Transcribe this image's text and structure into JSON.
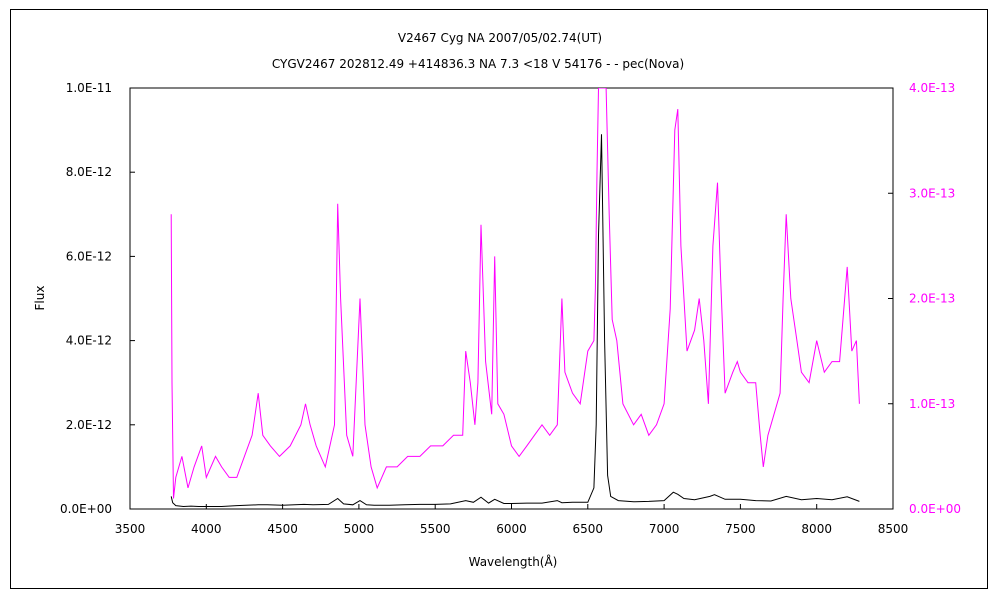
{
  "chart_data": {
    "type": "line",
    "title": "V2467 Cyg    NA    2007/05/02.74(UT)",
    "subtitle": "CYGV2467 202812.49 +414836.3 NA 7.3 <18 V 54176 - - pec(Nova)",
    "xlabel": "Wavelength(Å)",
    "ylabel": "Flux",
    "xlim": [
      3500,
      8500
    ],
    "ylim": [
      0,
      1e-11
    ],
    "y2lim": [
      0,
      4e-13
    ],
    "grid": false,
    "x_ticks": [
      "3500",
      "4000",
      "4500",
      "5000",
      "5500",
      "6000",
      "6500",
      "7000",
      "7500",
      "8000",
      "8500"
    ],
    "y_ticks": [
      "0.0E+00",
      "2.0E-12",
      "4.0E-12",
      "6.0E-12",
      "8.0E-12",
      "1.0E-11"
    ],
    "y2_ticks": [
      "0.0E+00",
      "1.0E-13",
      "2.0E-13",
      "3.0E-13",
      "4.0E-13"
    ],
    "colors": {
      "primary": "#000000",
      "secondary": "#ff00ff"
    },
    "series": [
      {
        "axis": "left",
        "color": "#000000",
        "x": [
          3770,
          3780,
          3800,
          3850,
          3900,
          3950,
          4000,
          4100,
          4200,
          4340,
          4400,
          4500,
          4640,
          4700,
          4800,
          4861,
          4900,
          4960,
          5007,
          5050,
          5100,
          5200,
          5300,
          5400,
          5500,
          5600,
          5700,
          5750,
          5800,
          5850,
          5890,
          5950,
          6000,
          6100,
          6200,
          6300,
          6330,
          6400,
          6500,
          6540,
          6555,
          6570,
          6590,
          6610,
          6630,
          6650,
          6700,
          6800,
          6900,
          7000,
          7060,
          7090,
          7130,
          7200,
          7300,
          7330,
          7400,
          7500,
          7600,
          7700,
          7800,
          7900,
          8000,
          8100,
          8200,
          8280
        ],
        "y": [
          3e-13,
          1.5e-13,
          8e-14,
          6e-14,
          7e-14,
          6e-14,
          6e-14,
          6e-14,
          8e-14,
          1e-13,
          1e-13,
          9e-14,
          1.1e-13,
          1e-13,
          1.1e-13,
          2.5e-13,
          1.2e-13,
          1e-13,
          2e-13,
          1e-13,
          9e-14,
          9e-14,
          1e-13,
          1.1e-13,
          1.1e-13,
          1.2e-13,
          2e-13,
          1.6e-13,
          2.8e-13,
          1.4e-13,
          2.3e-13,
          1.3e-13,
          1.3e-13,
          1.4e-13,
          1.4e-13,
          2e-13,
          1.5e-13,
          1.6e-13,
          1.6e-13,
          5e-13,
          2e-12,
          6.5e-12,
          8.9e-12,
          4e-12,
          8e-13,
          3e-13,
          2e-13,
          1.7e-13,
          1.8e-13,
          2e-13,
          4e-13,
          3.5e-13,
          2.5e-13,
          2.2e-13,
          3e-13,
          3.4e-13,
          2.3e-13,
          2.3e-13,
          2e-13,
          1.9e-13,
          3e-13,
          2.2e-13,
          2.5e-13,
          2.2e-13,
          2.9e-13,
          1.8e-13
        ]
      },
      {
        "axis": "right",
        "color": "#ff00ff",
        "x": [
          3770,
          3775,
          3785,
          3800,
          3840,
          3880,
          3920,
          3970,
          4000,
          4060,
          4100,
          4150,
          4200,
          4250,
          4300,
          4340,
          4370,
          4420,
          4480,
          4550,
          4620,
          4650,
          4680,
          4720,
          4780,
          4840,
          4861,
          4880,
          4920,
          4960,
          5007,
          5040,
          5080,
          5120,
          5180,
          5250,
          5320,
          5400,
          5470,
          5550,
          5620,
          5680,
          5700,
          5730,
          5760,
          5780,
          5800,
          5830,
          5870,
          5890,
          5910,
          5950,
          6000,
          6050,
          6100,
          6150,
          6200,
          6250,
          6300,
          6330,
          6350,
          6400,
          6450,
          6500,
          6540,
          6550,
          6560,
          6570,
          6580,
          6600,
          6620,
          6640,
          6660,
          6690,
          6730,
          6800,
          6850,
          6900,
          6950,
          7000,
          7040,
          7070,
          7090,
          7110,
          7150,
          7200,
          7230,
          7260,
          7290,
          7320,
          7350,
          7370,
          7400,
          7450,
          7480,
          7500,
          7550,
          7600,
          7630,
          7650,
          7680,
          7720,
          7760,
          7780,
          7800,
          7830,
          7870,
          7900,
          7950,
          8000,
          8050,
          8100,
          8150,
          8200,
          8230,
          8260,
          8280
        ],
        "y": [
          2.8e-13,
          1.2e-13,
          1e-14,
          3e-14,
          5e-14,
          2e-14,
          4e-14,
          6e-14,
          3e-14,
          5e-14,
          4e-14,
          3e-14,
          3e-14,
          5e-14,
          7e-14,
          1.1e-13,
          7e-14,
          6e-14,
          5e-14,
          6e-14,
          8e-14,
          1e-13,
          8e-14,
          6e-14,
          4e-14,
          8e-14,
          2.9e-13,
          2e-13,
          7e-14,
          5e-14,
          2e-13,
          8e-14,
          4e-14,
          2e-14,
          4e-14,
          4e-14,
          5e-14,
          5e-14,
          6e-14,
          6e-14,
          7e-14,
          7e-14,
          1.5e-13,
          1.2e-13,
          8e-14,
          1.2e-13,
          2.7e-13,
          1.4e-13,
          9e-14,
          2.4e-13,
          1e-13,
          9e-14,
          6e-14,
          5e-14,
          6e-14,
          7e-14,
          8e-14,
          7e-14,
          8e-14,
          2e-13,
          1.3e-13,
          1.1e-13,
          1e-13,
          1.5e-13,
          1.6e-13,
          2.1e-13,
          3.2e-13,
          4e-13,
          4e-13,
          4e-13,
          4e-13,
          2.8e-13,
          1.8e-13,
          1.6e-13,
          1e-13,
          8e-14,
          9e-14,
          7e-14,
          8e-14,
          1e-13,
          1.9e-13,
          3.6e-13,
          3.8e-13,
          2.5e-13,
          1.5e-13,
          1.7e-13,
          2e-13,
          1.6e-13,
          1e-13,
          2.5e-13,
          3.1e-13,
          2.2e-13,
          1.1e-13,
          1.3e-13,
          1.4e-13,
          1.3e-13,
          1.2e-13,
          1.2e-13,
          7e-14,
          4e-14,
          7e-14,
          9e-14,
          1.1e-13,
          2e-13,
          2.8e-13,
          2e-13,
          1.6e-13,
          1.3e-13,
          1.2e-13,
          1.6e-13,
          1.3e-13,
          1.4e-13,
          1.4e-13,
          2.3e-13,
          1.5e-13,
          1.6e-13,
          1e-13
        ]
      }
    ]
  }
}
